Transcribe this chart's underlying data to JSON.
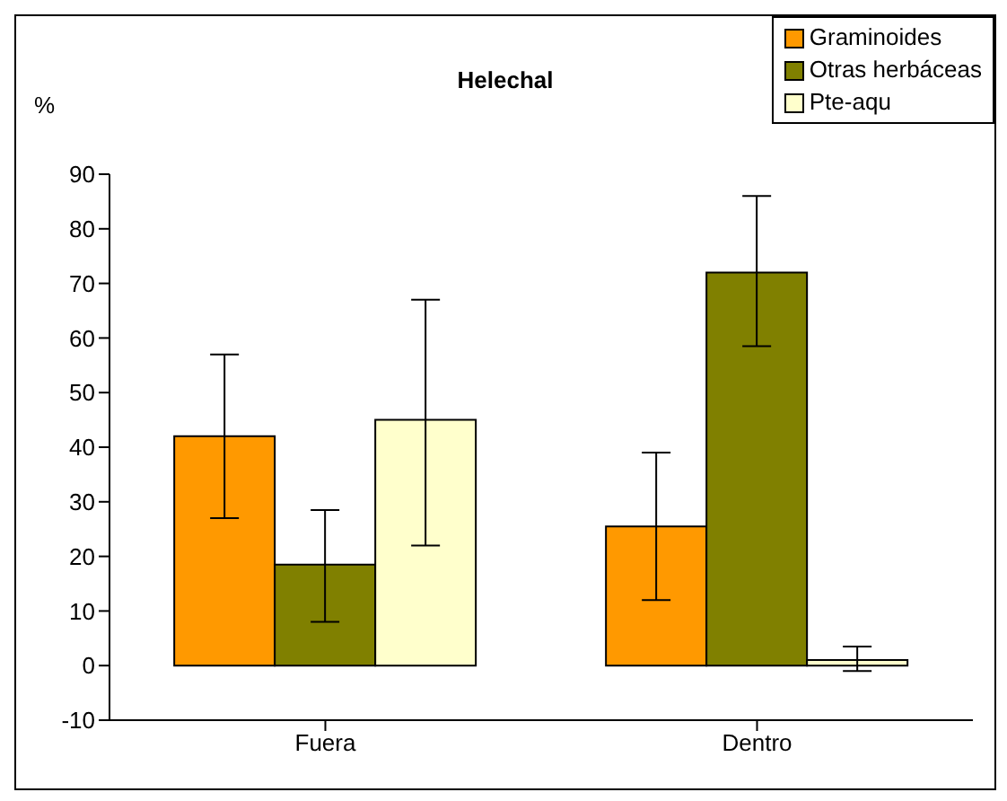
{
  "chart_data": {
    "type": "bar",
    "title": "Helechal",
    "ylabel": "%",
    "categories": [
      "Fuera",
      "Dentro"
    ],
    "series": [
      {
        "name": "Graminoides",
        "color": "#ff9900",
        "values": [
          42,
          25.5
        ],
        "errors": [
          [
            27,
            57
          ],
          [
            12,
            39
          ]
        ]
      },
      {
        "name": "Otras herbáceas",
        "color": "#808000",
        "values": [
          18.5,
          72
        ],
        "errors": [
          [
            8,
            28.5
          ],
          [
            58.5,
            86
          ]
        ]
      },
      {
        "name": "Pte-aqu",
        "color": "#ffffcc",
        "values": [
          45,
          1
        ],
        "errors": [
          [
            22,
            67
          ],
          [
            -1,
            3.5
          ]
        ]
      }
    ],
    "ylim": [
      -10,
      90
    ],
    "yticks": [
      -10,
      0,
      10,
      20,
      30,
      40,
      50,
      60,
      70,
      80,
      90
    ],
    "legend": "top right"
  }
}
